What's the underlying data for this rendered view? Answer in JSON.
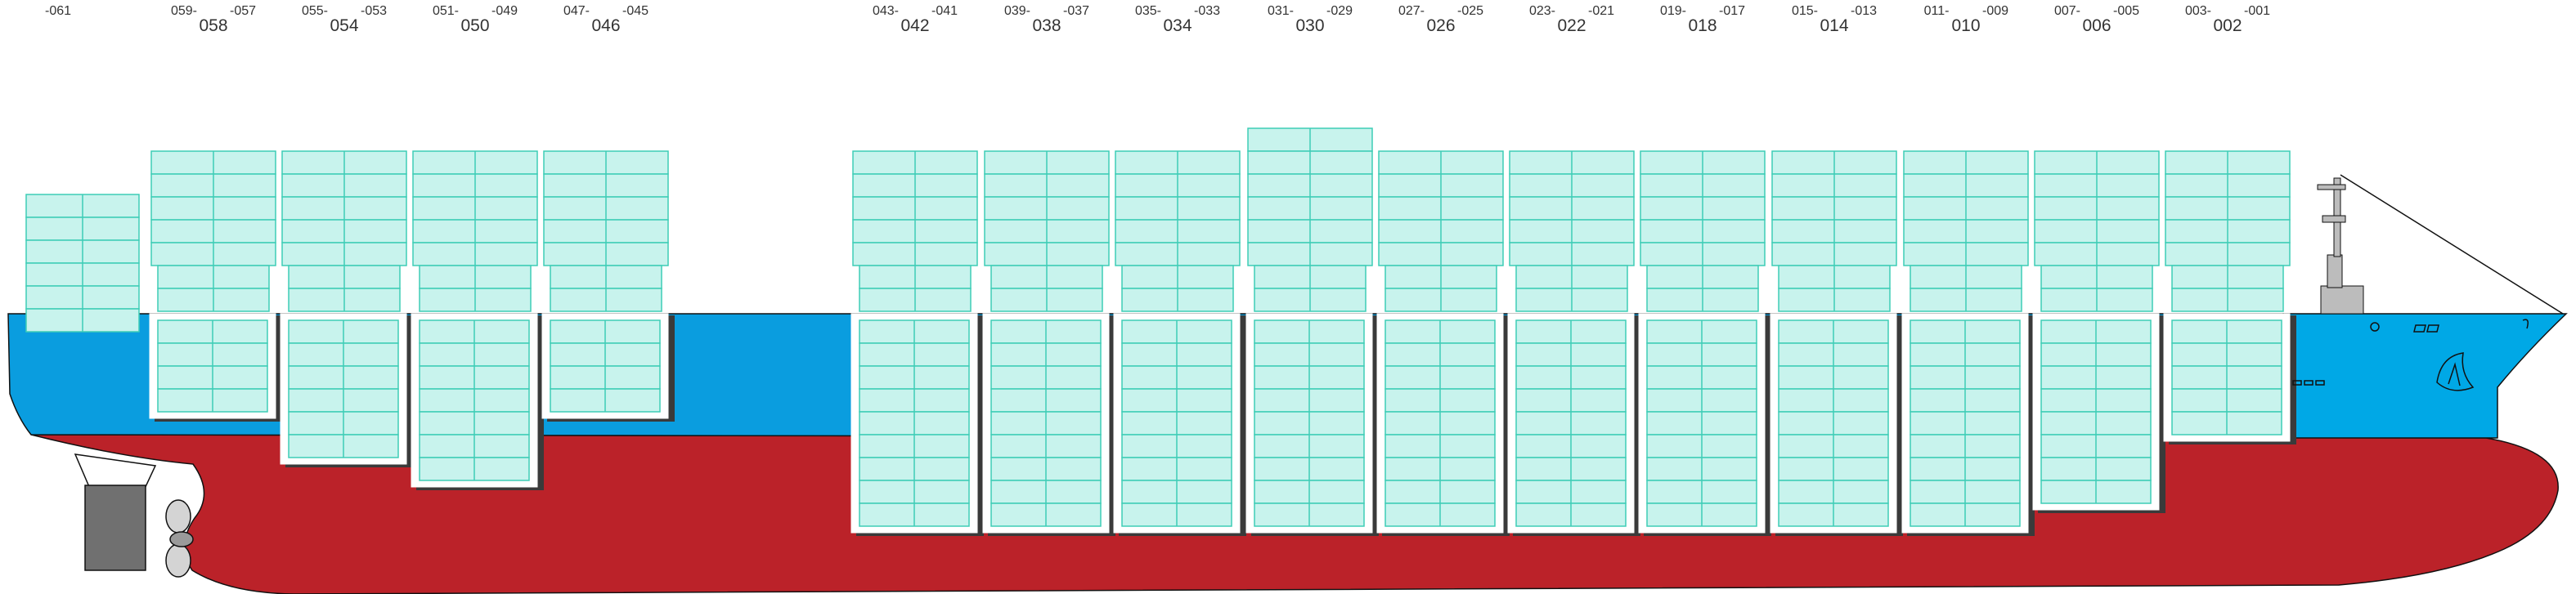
{
  "colors": {
    "hull_red": "#bb2229",
    "hull_blue": "#0a9ddf",
    "bridge_blue": "#00a8e6",
    "container_fill": "#c8f3ed",
    "container_stroke": "#3ecdb6",
    "hold_shadow": "#3a3a3a",
    "rudder_grey": "#707070",
    "propeller_grey": "#d4d4d4",
    "mast_grey": "#bcbcbc",
    "outline": "#111111"
  },
  "bays": [
    {
      "main": "",
      "left": "",
      "right": "-061"
    },
    {
      "main": "058",
      "left": "059-",
      "right": "-057"
    },
    {
      "main": "054",
      "left": "055-",
      "right": "-053"
    },
    {
      "main": "050",
      "left": "051-",
      "right": "-049"
    },
    {
      "main": "046",
      "left": "047-",
      "right": "-045"
    },
    {
      "main": "042",
      "left": "043-",
      "right": "-041"
    },
    {
      "main": "038",
      "left": "039-",
      "right": "-037"
    },
    {
      "main": "034",
      "left": "035-",
      "right": "-033"
    },
    {
      "main": "030",
      "left": "031-",
      "right": "-029"
    },
    {
      "main": "026",
      "left": "027-",
      "right": "-025"
    },
    {
      "main": "022",
      "left": "023-",
      "right": "-021"
    },
    {
      "main": "018",
      "left": "019-",
      "right": "-017"
    },
    {
      "main": "014",
      "left": "015-",
      "right": "-013"
    },
    {
      "main": "010",
      "left": "011-",
      "right": "-009"
    },
    {
      "main": "006",
      "left": "007-",
      "right": "-005"
    },
    {
      "main": "002",
      "left": "003-",
      "right": "-001"
    }
  ],
  "tiers": {
    "deck": [
      6,
      5,
      5,
      5,
      5,
      5,
      5,
      5,
      6,
      5,
      5,
      5,
      5,
      5,
      5,
      5
    ],
    "lashing": [
      0,
      2,
      2,
      2,
      2,
      2,
      2,
      2,
      2,
      2,
      2,
      2,
      2,
      2,
      2,
      2
    ],
    "hold": [
      0,
      4,
      6,
      7,
      4,
      9,
      9,
      9,
      9,
      9,
      9,
      9,
      9,
      9,
      8,
      5
    ]
  }
}
